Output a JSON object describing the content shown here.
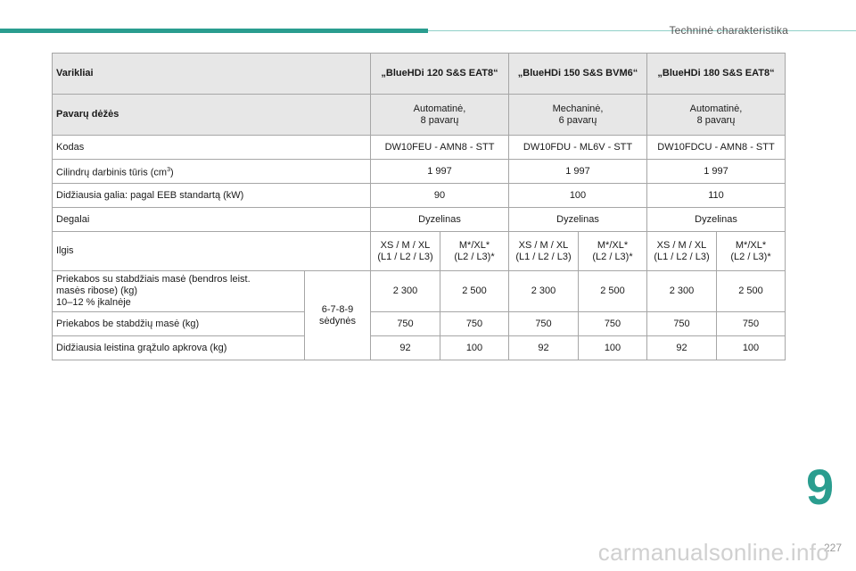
{
  "header": {
    "section_title": "Techninė charakteristika"
  },
  "table": {
    "engine_label": "Varikliai",
    "engines": [
      "„BlueHDi 120 S&S EAT8“",
      "„BlueHDi 150 S&S BVM6“",
      "„BlueHDi 180 S&S EAT8“"
    ],
    "gearbox_label": "Pavarų dėžės",
    "gearboxes": [
      {
        "line1": "Automatinė,",
        "line2": "8 pavarų"
      },
      {
        "line1": "Mechaninė,",
        "line2": "6 pavarų"
      },
      {
        "line1": "Automatinė,",
        "line2": "8 pavarų"
      }
    ],
    "code_label": "Kodas",
    "codes": [
      "DW10FEU - AMN8 - STT",
      "DW10FDU - ML6V - STT",
      "DW10FDCU - AMN8 - STT"
    ],
    "displacement_label": "Cilindrų darbinis tūris (cm",
    "displacement_sup": "3",
    "displacement_close": ")",
    "displacement": [
      "1 997",
      "1 997",
      "1 997"
    ],
    "power_label": "Didžiausia galia: pagal EEB standartą (kW)",
    "power": [
      "90",
      "100",
      "110"
    ],
    "fuel_label": "Degalai",
    "fuel": [
      "Dyzelinas",
      "Dyzelinas",
      "Dyzelinas"
    ],
    "length_label": "Ilgis",
    "lengths": [
      {
        "line1": "XS / M / XL",
        "line2": "(L1 / L2 / L3)"
      },
      {
        "line1": "M*/XL*",
        "line2": "(L2 / L3)*"
      },
      {
        "line1": "XS / M / XL",
        "line2": "(L1 / L2 / L3)"
      },
      {
        "line1": "M*/XL*",
        "line2": "(L2 / L3)*"
      },
      {
        "line1": "XS / M / XL",
        "line2": "(L1 / L2 / L3)"
      },
      {
        "line1": "M*/XL*",
        "line2": "(L2 / L3)*"
      }
    ],
    "seats": {
      "line1": "6-7-8-9",
      "line2": "sėdynės"
    },
    "braked_label": {
      "line1": "Priekabos su stabdžiais masė (bendros leist.",
      "line2": "masės ribose) (kg)",
      "line3": "10–12 % įkalnėje"
    },
    "braked": [
      "2 300",
      "2 500",
      "2 300",
      "2 500",
      "2 300",
      "2 500"
    ],
    "unbraked_label": "Priekabos be stabdžių masė (kg)",
    "unbraked": [
      "750",
      "750",
      "750",
      "750",
      "750",
      "750"
    ],
    "towbar_label": "Didžiausia leistina grąžulo apkrova (kg)",
    "towbar": [
      "92",
      "100",
      "92",
      "100",
      "92",
      "100"
    ]
  },
  "chapter_number": "9",
  "page_number": "227",
  "watermark": "carmanualsonline.info",
  "colors": {
    "accent": "#2a9d8f",
    "header_bg": "#e7e7e7",
    "border": "#a6a6a6"
  }
}
